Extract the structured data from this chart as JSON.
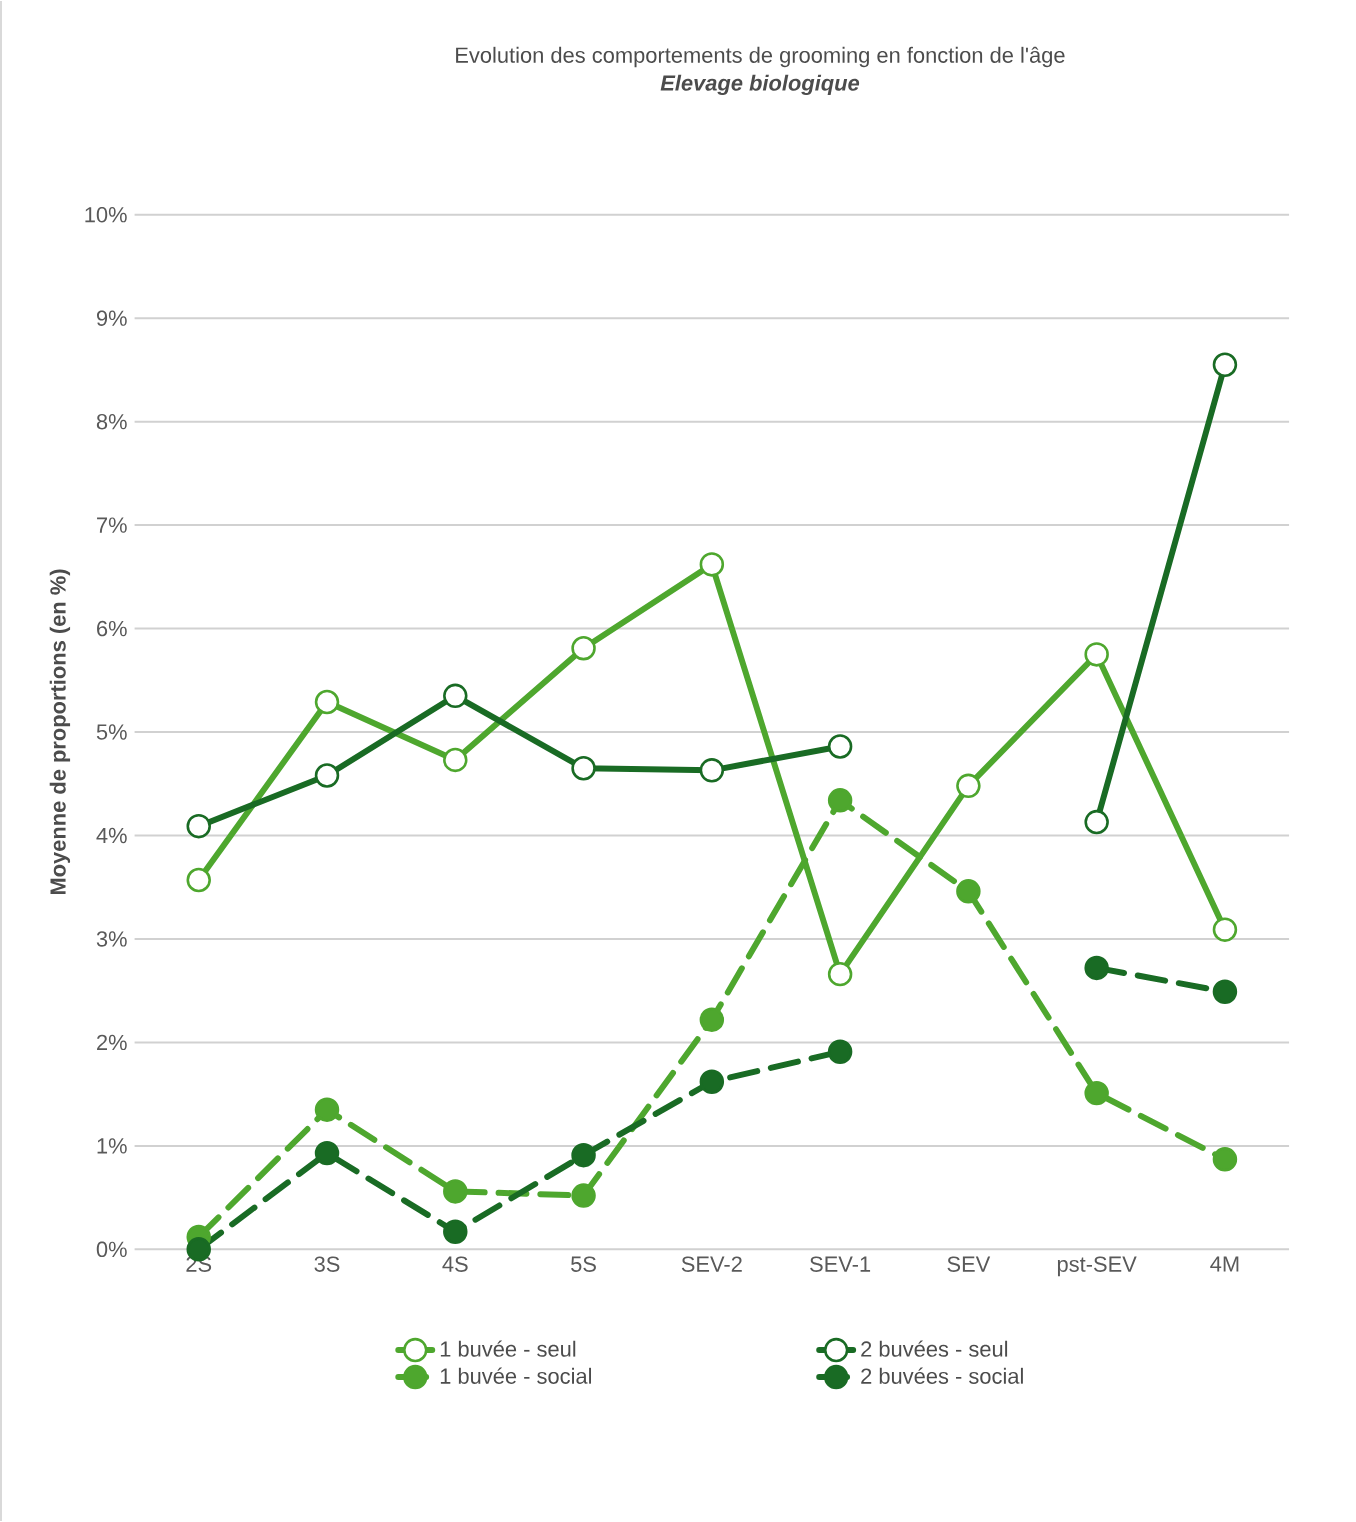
{
  "chart_data": {
    "type": "line",
    "title": "Evolution des comportements de grooming en fonction de l'âge",
    "subtitle": "Elevage biologique",
    "ylabel": "Moyenne de proportions (en %)",
    "categories": [
      "2S",
      "3S",
      "4S",
      "5S",
      "SEV-2",
      "SEV-1",
      "SEV",
      "pst-SEV",
      "4M"
    ],
    "series": [
      {
        "name": "1 buvée - seul",
        "color": "#4ea72e",
        "line_style": "solid",
        "values": [
          3.57,
          5.29,
          4.73,
          5.81,
          6.62,
          2.66,
          4.48,
          5.75,
          3.09
        ]
      },
      {
        "name": "2 buvées - seul",
        "color": "#196b24",
        "line_style": "solid",
        "values": [
          4.09,
          4.58,
          5.35,
          4.65,
          4.63,
          4.86,
          null,
          4.13,
          8.55
        ]
      },
      {
        "name": "1 buvée - social",
        "color": "#4ea72e",
        "line_style": "dashed",
        "values": [
          0.12,
          1.35,
          0.56,
          0.52,
          2.22,
          4.34,
          3.46,
          1.51,
          0.87
        ]
      },
      {
        "name": "2 buvées - social",
        "color": "#196b24",
        "line_style": "dashed",
        "values": [
          0.0,
          0.93,
          0.17,
          0.91,
          1.62,
          1.91,
          null,
          2.72,
          2.49
        ]
      }
    ],
    "ylim": [
      0,
      10
    ],
    "yticks": [
      {
        "value": 0,
        "label": "0%"
      },
      {
        "value": 1,
        "label": "1%"
      },
      {
        "value": 2,
        "label": "2%"
      },
      {
        "value": 3,
        "label": "3%"
      },
      {
        "value": 4,
        "label": "4%"
      },
      {
        "value": 5,
        "label": "5%"
      },
      {
        "value": 6,
        "label": "6%"
      },
      {
        "value": 7,
        "label": "7%"
      },
      {
        "value": 8,
        "label": "8%"
      },
      {
        "value": 9,
        "label": "9%"
      },
      {
        "value": 10,
        "label": "10%"
      }
    ],
    "grid": "y",
    "legend": "bottom",
    "marker": "circle"
  }
}
